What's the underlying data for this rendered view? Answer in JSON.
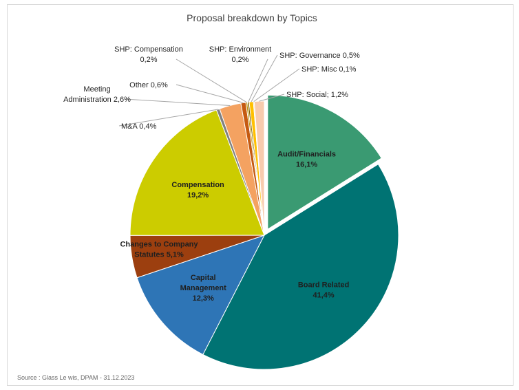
{
  "chart_data": {
    "type": "pie",
    "title": "Proposal breakdown by Topics",
    "source": "Source : Glass Le wis, DPAM -  31.12.2023",
    "slices": [
      {
        "label": [
          "Audit/Financials",
          "16,1%"
        ],
        "value": 16.1,
        "color": "#3a9a72",
        "explode": true,
        "style": "inside"
      },
      {
        "label": [
          "Board Related",
          "41,4%"
        ],
        "value": 41.4,
        "color": "#007373",
        "explode": false,
        "style": "inside"
      },
      {
        "label": [
          "Capital",
          "Management",
          "12,3%"
        ],
        "value": 12.3,
        "color": "#2e75b6",
        "explode": false,
        "style": "inside"
      },
      {
        "label": [
          "Changes to Company",
          "Statutes 5,1%"
        ],
        "value": 5.1,
        "color": "#9c3f0f",
        "explode": false,
        "style": "inside"
      },
      {
        "label": [
          "Compensation",
          "19,2%"
        ],
        "value": 19.2,
        "color": "#cccc00",
        "explode": false,
        "style": "inside"
      },
      {
        "label": [
          "M&A 0,4%"
        ],
        "value": 0.4,
        "color": "#808080",
        "explode": false,
        "style": "outside"
      },
      {
        "label": [
          "Meeting",
          "Administration 2,6%"
        ],
        "value": 2.6,
        "color": "#f4a261",
        "explode": false,
        "style": "outside"
      },
      {
        "label": [
          "Other 0,6%"
        ],
        "value": 0.6,
        "color": "#c55a11",
        "explode": false,
        "style": "outside"
      },
      {
        "label": [
          "SHP: Compensation",
          "0,2%"
        ],
        "value": 0.2,
        "color": "#bf9000",
        "explode": false,
        "style": "outside"
      },
      {
        "label": [
          "SHP: Environment",
          "0,2%"
        ],
        "value": 0.2,
        "color": "#7f6000",
        "explode": false,
        "style": "outside"
      },
      {
        "label": [
          "SHP: Governance 0,5%"
        ],
        "value": 0.5,
        "color": "#ffc000",
        "explode": false,
        "style": "outside"
      },
      {
        "label": [
          "SHP: Misc 0,1%"
        ],
        "value": 0.1,
        "color": "#e0a060",
        "explode": false,
        "style": "outside"
      },
      {
        "label": [
          "SHP: Social; 1,2%"
        ],
        "value": 1.2,
        "color": "#f8cbad",
        "explode": false,
        "style": "outside"
      }
    ]
  }
}
